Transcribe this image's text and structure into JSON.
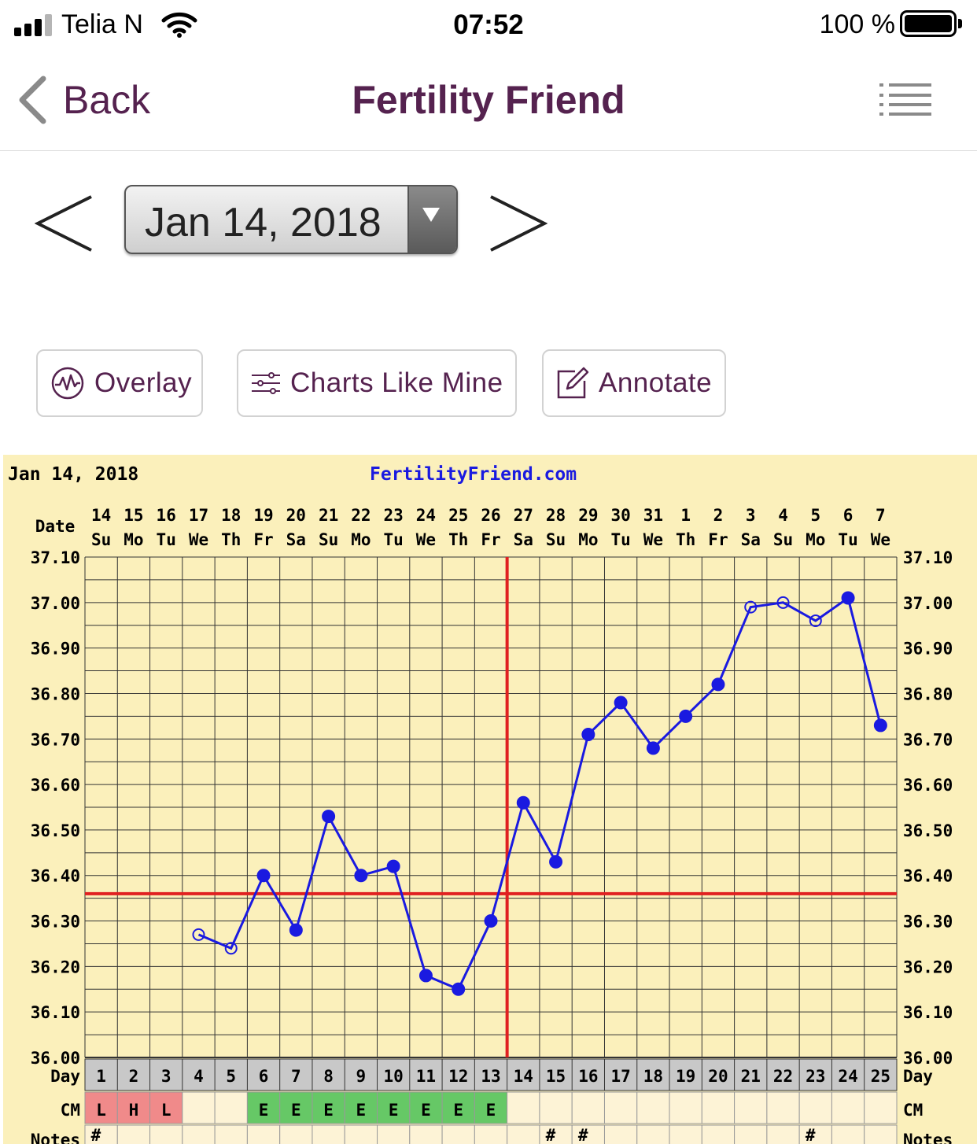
{
  "status_bar": {
    "carrier": "Telia N",
    "time": "07:52",
    "battery": "100 %"
  },
  "nav": {
    "back_label": "Back",
    "title": "Fertility Friend",
    "menu_icon": "list-icon"
  },
  "date_selector": {
    "value": "Jan 14, 2018",
    "prev_icon": "chevron-left-icon",
    "next_icon": "chevron-right-icon"
  },
  "actions": {
    "overlay": "Overlay",
    "charts_like_mine": "Charts Like Mine",
    "annotate": "Annotate"
  },
  "colors": {
    "accent": "#55224f",
    "chart_bg": "#fbf0bb",
    "temp_line": "#1a1ae0",
    "coverline": "#e02020",
    "cm_red": "#f08a8a",
    "cm_green": "#66c866",
    "day_row": "#c8c8c8"
  },
  "chart_data": {
    "type": "line",
    "header_date": "Jan 14, 2018",
    "brand": "FertilityFriend.com",
    "date_label": "Date",
    "day_label": "Day",
    "cm_label": "CM",
    "notes_label": "Notes",
    "dates": [
      "14",
      "15",
      "16",
      "17",
      "18",
      "19",
      "20",
      "21",
      "22",
      "23",
      "24",
      "25",
      "26",
      "27",
      "28",
      "29",
      "30",
      "31",
      "1",
      "2",
      "3",
      "4",
      "5",
      "6",
      "7"
    ],
    "weekdays": [
      "Su",
      "Mo",
      "Tu",
      "We",
      "Th",
      "Fr",
      "Sa",
      "Su",
      "Mo",
      "Tu",
      "We",
      "Th",
      "Fr",
      "Sa",
      "Su",
      "Mo",
      "Tu",
      "We",
      "Th",
      "Fr",
      "Sa",
      "Su",
      "Mo",
      "Tu",
      "We"
    ],
    "days": [
      1,
      2,
      3,
      4,
      5,
      6,
      7,
      8,
      9,
      10,
      11,
      12,
      13,
      14,
      15,
      16,
      17,
      18,
      19,
      20,
      21,
      22,
      23,
      24,
      25
    ],
    "y_ticks": [
      "37.10",
      "37.00",
      "36.90",
      "36.80",
      "36.70",
      "36.60",
      "36.50",
      "36.40",
      "36.30",
      "36.20",
      "36.10",
      "36.00"
    ],
    "ylim": [
      36.0,
      37.1
    ],
    "temperatures": [
      null,
      null,
      null,
      36.27,
      36.24,
      36.4,
      36.28,
      36.53,
      36.4,
      36.42,
      36.18,
      36.15,
      36.3,
      36.56,
      36.43,
      36.71,
      36.78,
      36.68,
      36.75,
      36.82,
      36.99,
      37.0,
      36.96,
      37.01,
      36.73
    ],
    "open_markers": [
      4,
      5,
      21,
      22,
      23
    ],
    "coverline": 36.36,
    "ovulation_day": 13,
    "cm": [
      "L",
      "H",
      "L",
      "",
      "",
      "E",
      "E",
      "E",
      "E",
      "E",
      "E",
      "E",
      "E",
      "",
      "",
      "",
      "",
      "",
      "",
      "",
      "",
      "",
      "",
      "",
      ""
    ],
    "notes": [
      "#",
      "",
      "",
      "",
      "",
      "",
      "",
      "",
      "",
      "",
      "",
      "",
      "",
      "",
      "#",
      "#",
      "",
      "",
      "",
      "",
      "",
      "",
      "#",
      "",
      ""
    ]
  }
}
